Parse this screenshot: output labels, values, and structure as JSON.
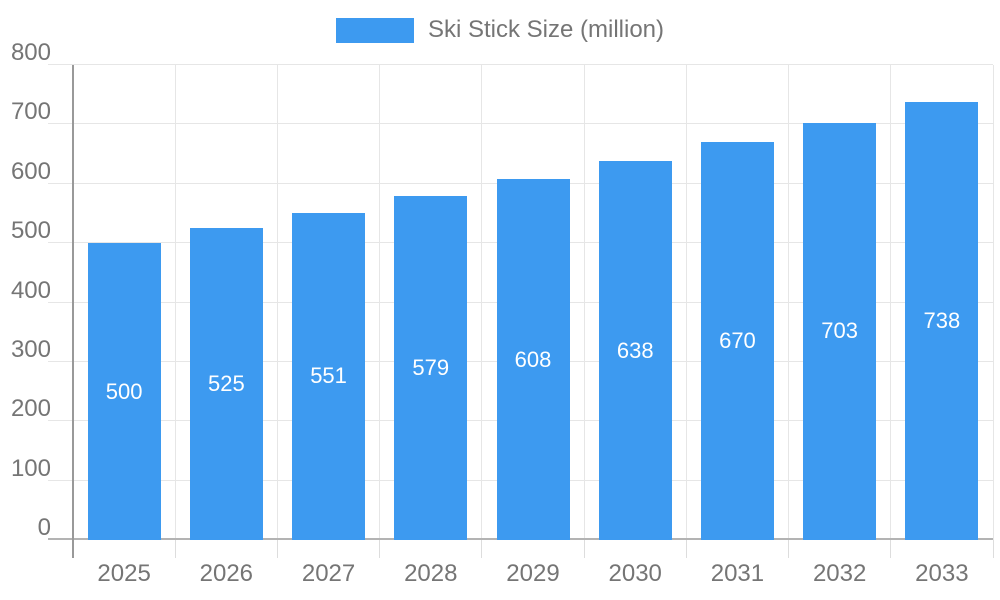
{
  "chart_data": {
    "type": "bar",
    "title": "Ski Stick Size (million)",
    "legend_position": "top",
    "categories": [
      "2025",
      "2026",
      "2027",
      "2028",
      "2029",
      "2030",
      "2031",
      "2032",
      "2033"
    ],
    "series": [
      {
        "name": "Ski Stick Size (million)",
        "values": [
          500,
          525,
          551,
          579,
          608,
          638,
          670,
          703,
          738
        ]
      }
    ],
    "xlabel": "",
    "ylabel": "",
    "ylim": [
      0,
      800
    ],
    "ytick_step": 100,
    "grid": true,
    "value_labels": "centered-inside-bars",
    "colors": {
      "bar": "#3d9af0",
      "value_label": "#ffffff",
      "axis_text": "#757575",
      "axis_line": "#999999",
      "baseline": "#b3b3b3",
      "gridline": "#e6e6e6",
      "tick": "#dddddd",
      "background": "#ffffff"
    }
  }
}
